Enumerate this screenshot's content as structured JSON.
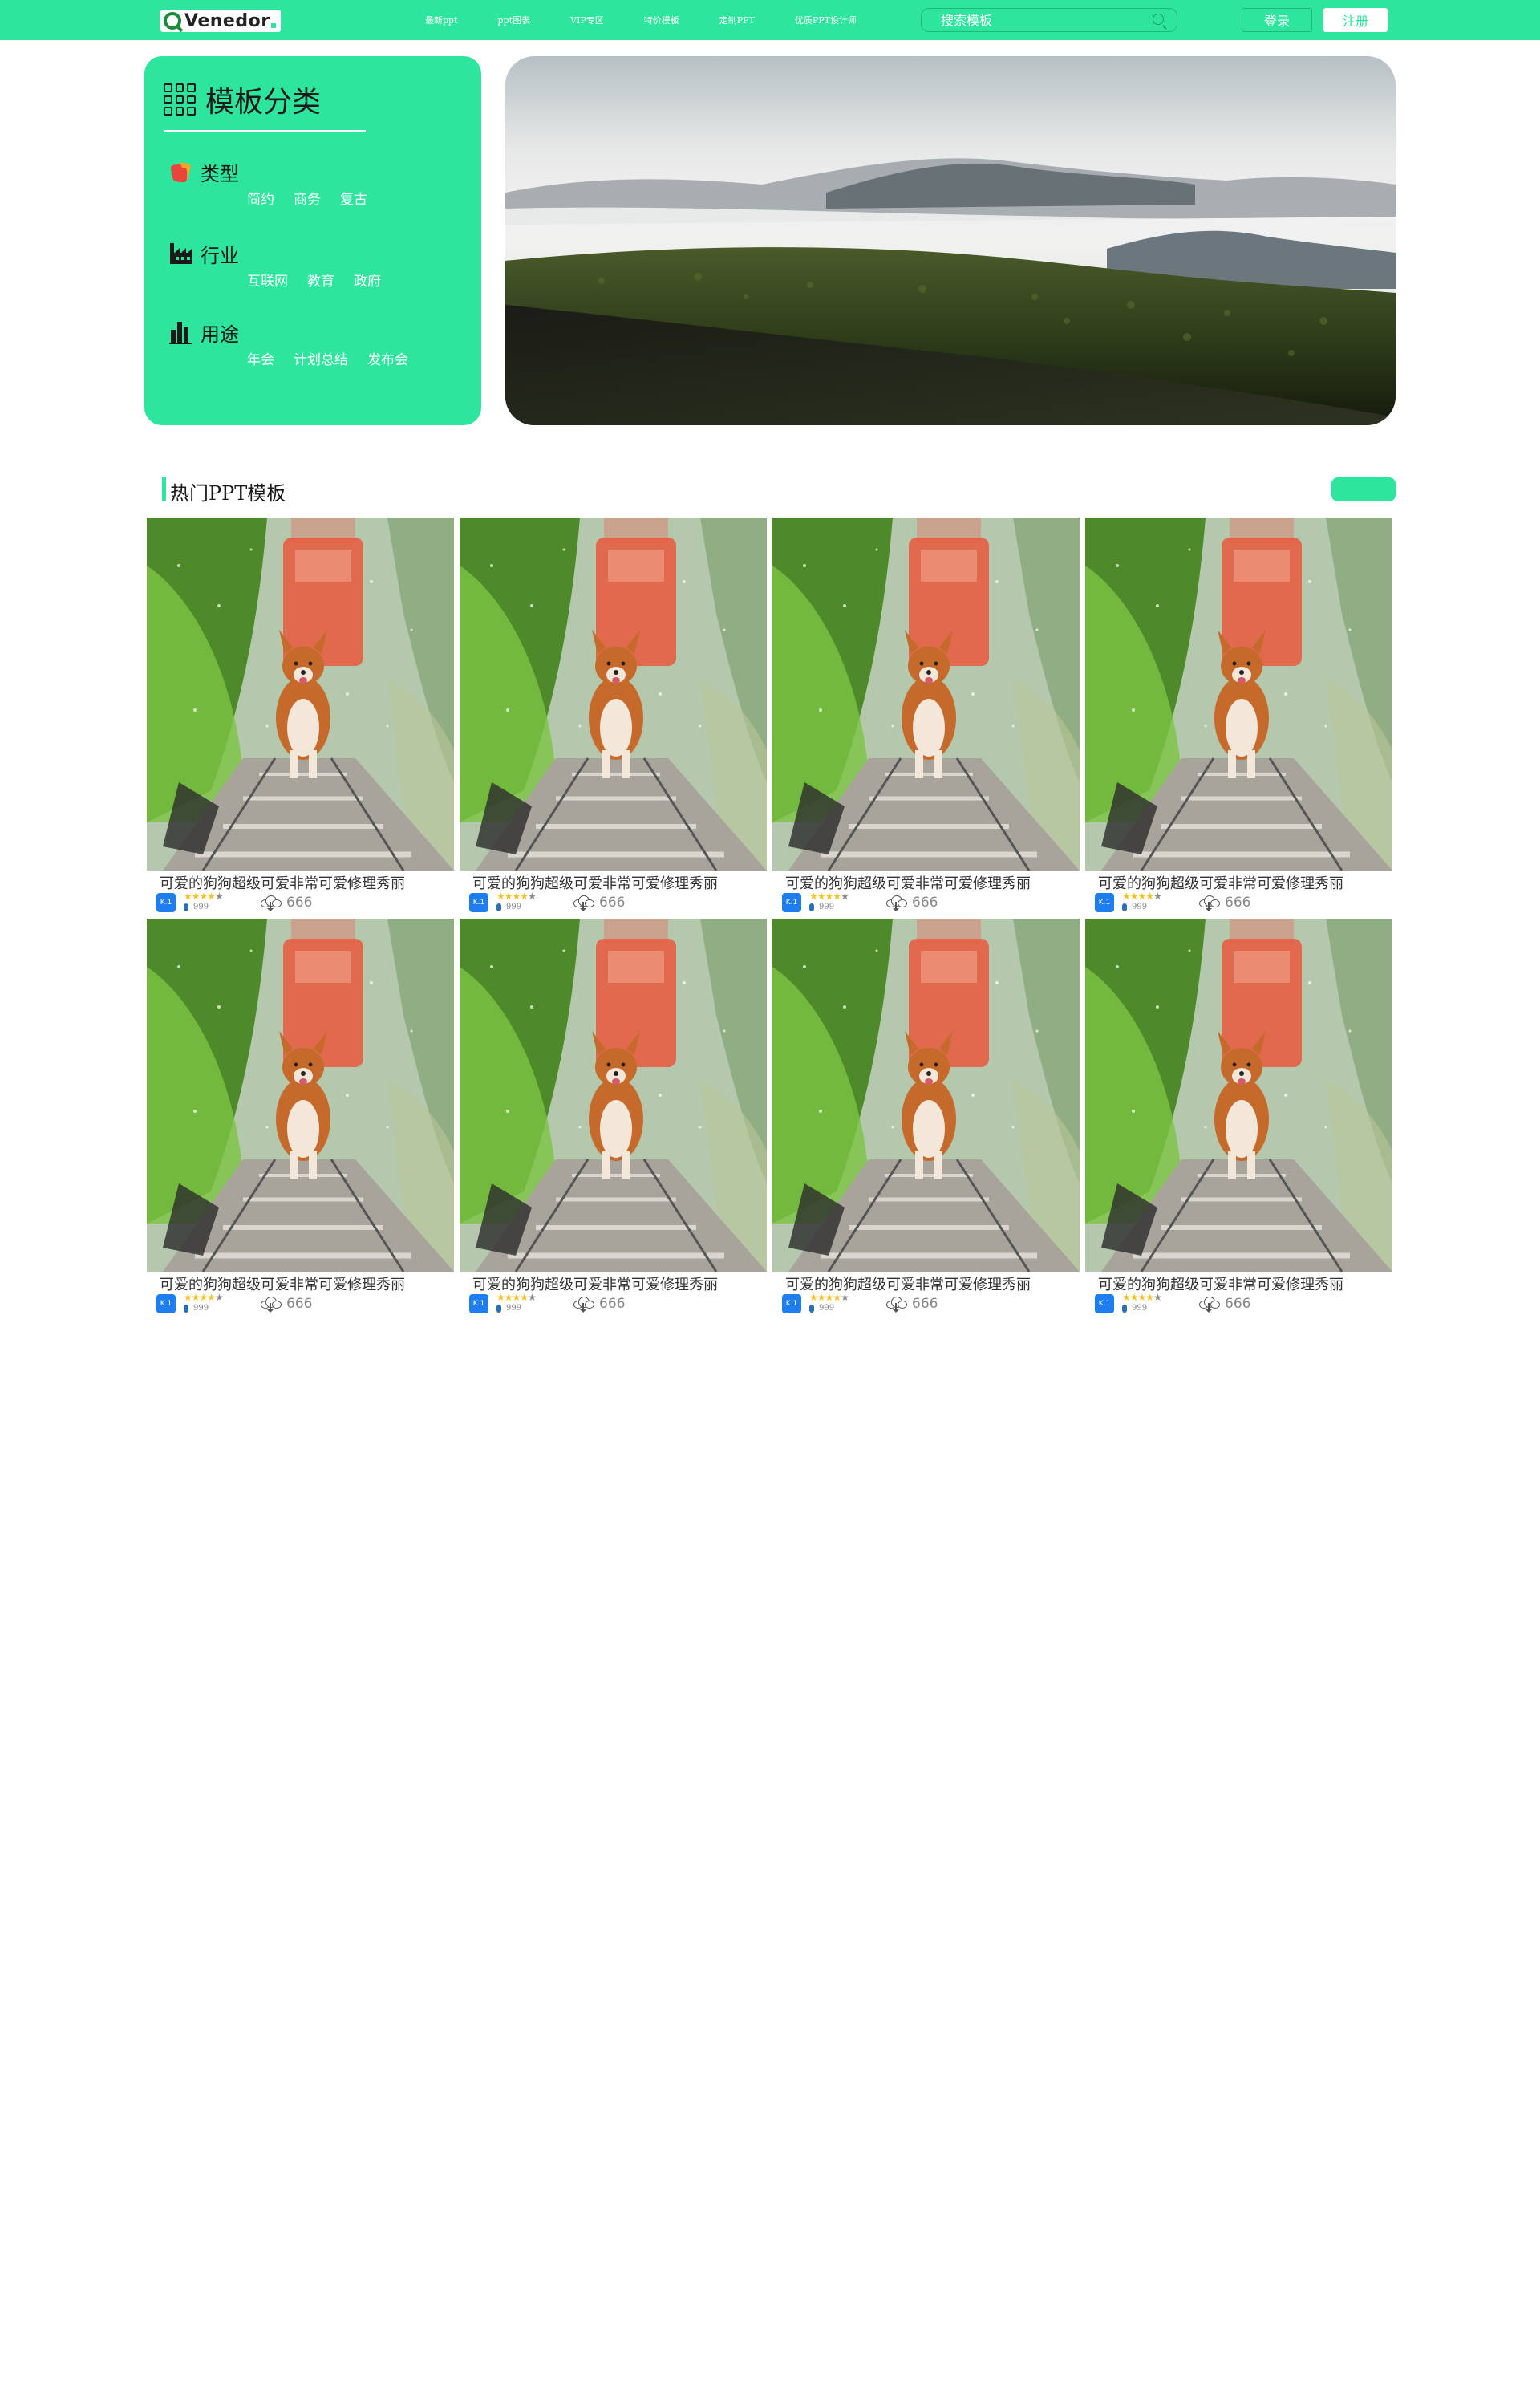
{
  "header": {
    "logo_text": "Venedor",
    "nav": [
      "最新ppt",
      "ppt图表",
      "VIP专区",
      "特价模板",
      "定制PPT",
      "优质PPT设计师"
    ],
    "search_placeholder": "搜索模板",
    "login_label": "登录",
    "register_label": "注册",
    "accent_color": "#2ee59d"
  },
  "categories": {
    "title": "模板分类",
    "groups": [
      {
        "name": "类型",
        "icon": "clothes-icon",
        "tags": [
          "简约",
          "商务",
          "复古"
        ]
      },
      {
        "name": "行业",
        "icon": "factory-icon",
        "tags": [
          "互联网",
          "教育",
          "政府"
        ]
      },
      {
        "name": "用途",
        "icon": "bar-chart-icon",
        "tags": [
          "年会",
          "计划总结",
          "发布会"
        ]
      }
    ]
  },
  "banner": {
    "image": "misty-mountain-landscape"
  },
  "hot_section": {
    "title": "热门PPT模板",
    "more_label": ""
  },
  "cards": [
    {
      "title": "可爱的狗狗超级可爱非常可爱修理秀丽",
      "badge": "K.1",
      "rating": 4,
      "views": "999",
      "downloads": "666"
    },
    {
      "title": "可爱的狗狗超级可爱非常可爱修理秀丽",
      "badge": "K.1",
      "rating": 4,
      "views": "999",
      "downloads": "666"
    },
    {
      "title": "可爱的狗狗超级可爱非常可爱修理秀丽",
      "badge": "K.1",
      "rating": 4,
      "views": "999",
      "downloads": "666"
    },
    {
      "title": "可爱的狗狗超级可爱非常可爱修理秀丽",
      "badge": "K.1",
      "rating": 4,
      "views": "999",
      "downloads": "666"
    },
    {
      "title": "可爱的狗狗超级可爱非常可爱修理秀丽",
      "badge": "K.1",
      "rating": 4,
      "views": "999",
      "downloads": "666"
    },
    {
      "title": "可爱的狗狗超级可爱非常可爱修理秀丽",
      "badge": "K.1",
      "rating": 4,
      "views": "999",
      "downloads": "666"
    },
    {
      "title": "可爱的狗狗超级可爱非常可爱修理秀丽",
      "badge": "K.1",
      "rating": 4,
      "views": "999",
      "downloads": "666"
    },
    {
      "title": "可爱的狗狗超级可爱非常可爱修理秀丽",
      "badge": "K.1",
      "rating": 4,
      "views": "999",
      "downloads": "666"
    }
  ]
}
